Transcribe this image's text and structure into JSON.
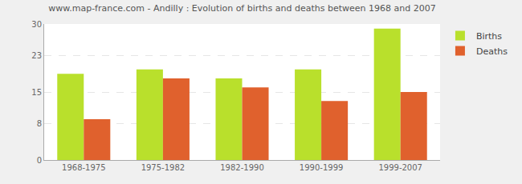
{
  "chart_data": {
    "type": "bar",
    "title": "www.map-france.com - Andilly : Evolution of births and deaths between 1968 and 2007",
    "categories": [
      "1968-1975",
      "1975-1982",
      "1982-1990",
      "1990-1999",
      "1999-2007"
    ],
    "series": [
      {
        "name": "Births",
        "color": "#b9e02c",
        "values": [
          19,
          20,
          18,
          20,
          29
        ]
      },
      {
        "name": "Deaths",
        "color": "#e0612d",
        "values": [
          9,
          18,
          16,
          13,
          15
        ]
      }
    ],
    "ylim": [
      0,
      30
    ],
    "yticks": [
      0,
      8,
      15,
      23,
      30
    ],
    "grid": true,
    "legend": "top right"
  }
}
